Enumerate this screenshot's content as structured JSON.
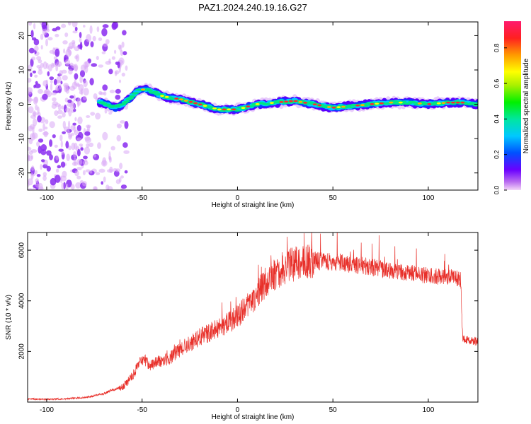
{
  "title": "PAZ1.2024.240.19.16.G27",
  "colors": {
    "snr_line": "#e8302a",
    "axis": "#000000",
    "background": "#ffffff"
  },
  "chart_data": [
    {
      "type": "heatmap",
      "xlabel": "Height of straight line (km)",
      "ylabel": "Frequency (Hz)",
      "xlim": [
        -110,
        126
      ],
      "ylim": [
        -25,
        24
      ],
      "x_ticks": [
        -100,
        -50,
        0,
        50,
        100
      ],
      "y_ticks": [
        -20,
        -10,
        0,
        10,
        20
      ],
      "colorbar": {
        "label": "Normalized spectral amplitude",
        "range": [
          0.0,
          0.95
        ],
        "ticks": [
          "0.0",
          "0.2",
          "0.4",
          "0.6",
          "0.8"
        ],
        "placement": "right"
      },
      "description_series": {
        "name": "",
        "x": [
          -72,
          -68,
          -64,
          -60,
          -56,
          -52,
          -48,
          -44,
          -40,
          -36,
          -30,
          -20,
          -10,
          0,
          10,
          20,
          30,
          40,
          50,
          60,
          70,
          80,
          90,
          100,
          110,
          120,
          126
        ],
        "y": [
          0.5,
          0,
          -1,
          0,
          2,
          4,
          4.5,
          3.5,
          2.5,
          2,
          1.5,
          0,
          -1.5,
          -1.5,
          0,
          0.5,
          1,
          0,
          -1,
          -0.5,
          0,
          0.5,
          0.5,
          0,
          0.5,
          0.5,
          0
        ]
      },
      "noise_region_x": [
        -110,
        -62
      ]
    },
    {
      "type": "line",
      "xlabel": "Height of straight line (km)",
      "ylabel": "SNR (10 * v/v)",
      "xlim": [
        -110,
        126
      ],
      "ylim": [
        0,
        6700
      ],
      "x_ticks": [
        -100,
        -50,
        0,
        50,
        100
      ],
      "y_ticks": [
        2000,
        4000,
        6000
      ],
      "series": [
        {
          "name": "",
          "x": [
            -110,
            -100,
            -90,
            -80,
            -70,
            -65,
            -60,
            -55,
            -50,
            -45,
            -40,
            -35,
            -30,
            -25,
            -20,
            -15,
            -10,
            -5,
            0,
            5,
            10,
            15,
            20,
            25,
            30,
            35,
            40,
            45,
            50,
            55,
            60,
            65,
            70,
            75,
            80,
            85,
            90,
            95,
            100,
            105,
            110,
            115,
            117,
            118,
            120,
            125,
            126
          ],
          "values": [
            120,
            110,
            130,
            180,
            330,
            500,
            600,
            1050,
            1700,
            1450,
            1650,
            1750,
            2100,
            2300,
            2550,
            2750,
            2900,
            3100,
            3400,
            3750,
            4250,
            4750,
            5100,
            5300,
            5450,
            5550,
            5600,
            5550,
            5550,
            5500,
            5450,
            5400,
            5350,
            5250,
            5200,
            5150,
            5100,
            5050,
            5000,
            4950,
            4950,
            4900,
            4850,
            2550,
            2450,
            2400,
            2450
          ]
        }
      ]
    }
  ]
}
